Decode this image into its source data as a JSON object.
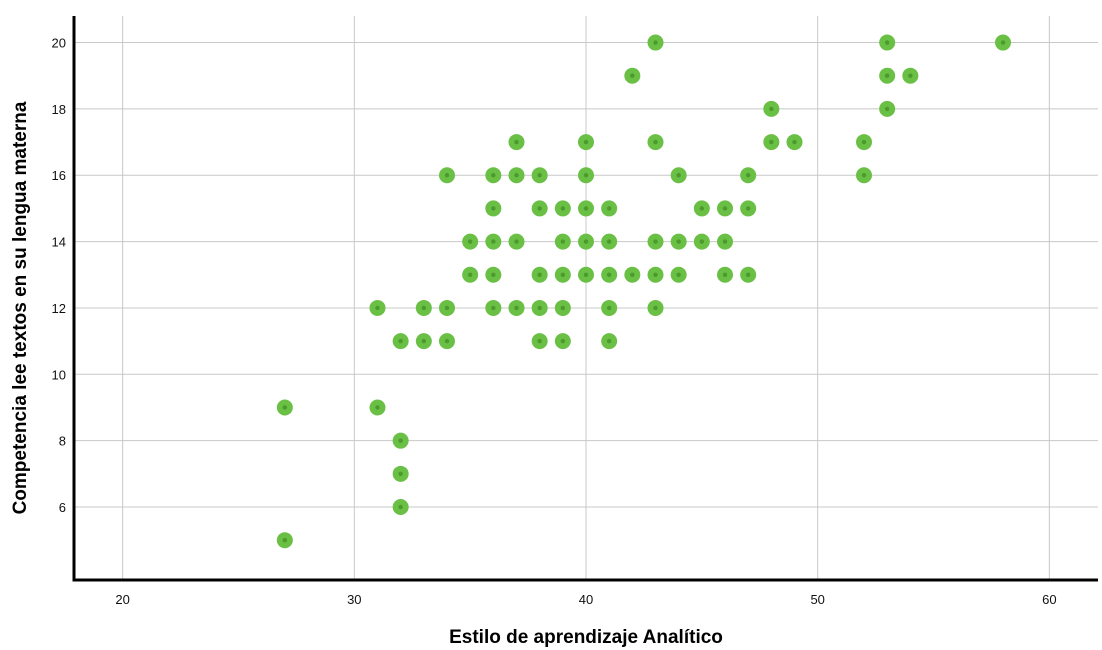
{
  "chart_data": {
    "type": "scatter",
    "title": "",
    "xlabel": "Estilo de aprendizaje Analítico",
    "ylabel": "Competencia lee textos en su lengua materna",
    "xlim": [
      17.9,
      62.1
    ],
    "ylim": [
      3.8,
      20.8
    ],
    "xticks": [
      20,
      30,
      40,
      50,
      60
    ],
    "yticks": [
      6,
      8,
      10,
      12,
      14,
      16,
      18,
      20
    ],
    "grid": true,
    "marker_color": "#6abf45",
    "marker_center_color": "#4a9a2c",
    "grid_color": "#c8c8c8",
    "axis_color": "#000000",
    "series": [
      {
        "points": [
          [
            27,
            9
          ],
          [
            27,
            5
          ],
          [
            31,
            12
          ],
          [
            31,
            9
          ],
          [
            32,
            11
          ],
          [
            32,
            8
          ],
          [
            32,
            7
          ],
          [
            32,
            6
          ],
          [
            33,
            12
          ],
          [
            33,
            11
          ],
          [
            34,
            16
          ],
          [
            34,
            12
          ],
          [
            34,
            11
          ],
          [
            35,
            14
          ],
          [
            35,
            13
          ],
          [
            36,
            16
          ],
          [
            36,
            15
          ],
          [
            36,
            14
          ],
          [
            36,
            13
          ],
          [
            36,
            12
          ],
          [
            37,
            17
          ],
          [
            37,
            16
          ],
          [
            37,
            14
          ],
          [
            37,
            12
          ],
          [
            38,
            16
          ],
          [
            38,
            15
          ],
          [
            38,
            13
          ],
          [
            38,
            12
          ],
          [
            38,
            11
          ],
          [
            39,
            15
          ],
          [
            39,
            14
          ],
          [
            39,
            13
          ],
          [
            39,
            12
          ],
          [
            39,
            11
          ],
          [
            40,
            17
          ],
          [
            40,
            16
          ],
          [
            40,
            15
          ],
          [
            40,
            14
          ],
          [
            40,
            13
          ],
          [
            41,
            15
          ],
          [
            41,
            14
          ],
          [
            41,
            13
          ],
          [
            41,
            12
          ],
          [
            41,
            11
          ],
          [
            42,
            19
          ],
          [
            42,
            13
          ],
          [
            43,
            20
          ],
          [
            43,
            17
          ],
          [
            43,
            14
          ],
          [
            43,
            13
          ],
          [
            43,
            12
          ],
          [
            44,
            16
          ],
          [
            44,
            14
          ],
          [
            44,
            13
          ],
          [
            45,
            15
          ],
          [
            45,
            14
          ],
          [
            46,
            15
          ],
          [
            46,
            14
          ],
          [
            46,
            13
          ],
          [
            47,
            16
          ],
          [
            47,
            15
          ],
          [
            47,
            13
          ],
          [
            48,
            18
          ],
          [
            48,
            17
          ],
          [
            49,
            17
          ],
          [
            52,
            17
          ],
          [
            52,
            16
          ],
          [
            53,
            20
          ],
          [
            53,
            19
          ],
          [
            53,
            18
          ],
          [
            54,
            19
          ],
          [
            58,
            20
          ]
        ]
      }
    ]
  }
}
